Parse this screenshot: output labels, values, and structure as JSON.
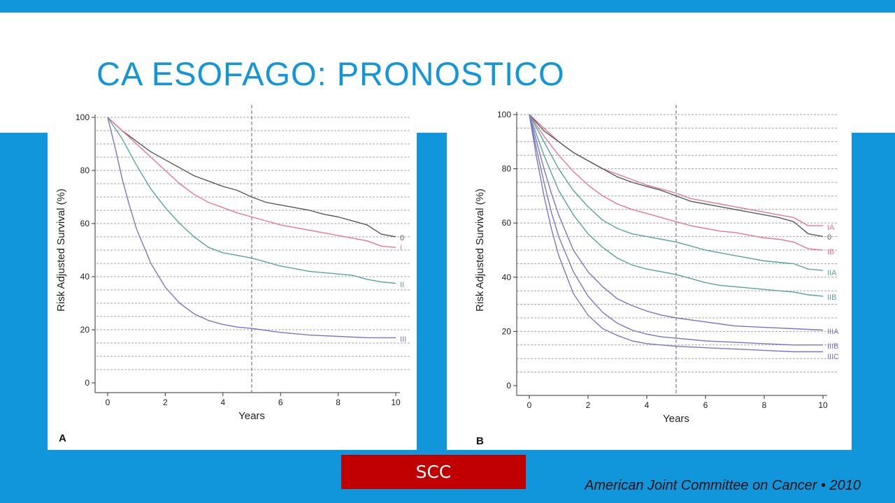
{
  "title": "CA ESOFAGO: PRONOSTICO",
  "badge": "SCC",
  "source": "American Joint Committee on Cancer • 2010",
  "colors": {
    "accent": "#1296db",
    "title": "#1296db",
    "badge_bg": "#c00000"
  },
  "chart_data": [
    {
      "type": "line",
      "panel_label": "A",
      "xlabel": "Years",
      "ylabel": "Risk Adjusted Survival (%)",
      "xlim": [
        0,
        10
      ],
      "ylim": [
        0,
        100
      ],
      "xticks": [
        0,
        2,
        4,
        6,
        8,
        10
      ],
      "yticks": [
        0,
        20,
        40,
        60,
        80,
        100
      ],
      "vline_x": 5,
      "grid": "horizontal dashed",
      "series": [
        {
          "name": "0",
          "color": "#595959",
          "x": [
            0,
            0.5,
            1,
            1.5,
            2,
            2.5,
            3,
            3.5,
            4,
            4.5,
            5,
            5.5,
            6,
            6.5,
            7,
            7.5,
            8,
            8.5,
            9,
            9.5,
            10
          ],
          "y": [
            100,
            95,
            91,
            87,
            84,
            81,
            78,
            76,
            74,
            72.5,
            70,
            68,
            67,
            66,
            65,
            63.5,
            62.5,
            61,
            59.5,
            56,
            55
          ]
        },
        {
          "name": "I",
          "color": "#e8769a",
          "x": [
            0,
            0.5,
            1,
            1.5,
            2,
            2.5,
            3,
            3.5,
            4,
            4.5,
            5,
            5.5,
            6,
            6.5,
            7,
            7.5,
            8,
            8.5,
            9,
            9.5,
            10
          ],
          "y": [
            100,
            95,
            90,
            85,
            80,
            75,
            71,
            68,
            66,
            64,
            62.5,
            61,
            59.5,
            58.5,
            57.5,
            56.5,
            55.5,
            54.5,
            53.5,
            51.5,
            51
          ]
        },
        {
          "name": "II",
          "color": "#5aa39d",
          "x": [
            0,
            0.5,
            1,
            1.5,
            2,
            2.5,
            3,
            3.5,
            4,
            4.5,
            5,
            5.5,
            6,
            6.5,
            7,
            7.5,
            8,
            8.5,
            9,
            9.5,
            10
          ],
          "y": [
            100,
            92,
            82,
            73,
            66,
            60,
            55,
            51,
            49,
            48,
            47,
            45.5,
            44,
            43,
            42,
            41.5,
            41,
            40.5,
            39,
            38,
            37.5
          ]
        },
        {
          "name": "III",
          "color": "#7b76c4",
          "x": [
            0,
            0.25,
            0.5,
            0.75,
            1,
            1.5,
            2,
            2.5,
            3,
            3.5,
            4,
            4.5,
            5,
            6,
            7,
            8,
            9,
            10
          ],
          "y": [
            100,
            89,
            77,
            67,
            58,
            45,
            36,
            30,
            26,
            23.5,
            22,
            21,
            20.5,
            19,
            18,
            17.5,
            17,
            17
          ]
        }
      ]
    },
    {
      "type": "line",
      "panel_label": "B",
      "xlabel": "Years",
      "ylabel": "Risk Adjusted Survival (%)",
      "xlim": [
        0,
        10
      ],
      "ylim": [
        0,
        100
      ],
      "xticks": [
        0,
        2,
        4,
        6,
        8,
        10
      ],
      "yticks": [
        0,
        20,
        40,
        60,
        80,
        100
      ],
      "vline_x": 5,
      "grid": "horizontal dashed",
      "series": [
        {
          "name": "IA",
          "color": "#e8769a",
          "x": [
            0,
            0.5,
            1,
            1.5,
            2,
            2.5,
            3,
            3.5,
            4,
            4.5,
            5,
            5.5,
            6,
            6.5,
            7,
            7.5,
            8,
            8.5,
            9,
            9.5,
            10
          ],
          "y": [
            100,
            95,
            90,
            86,
            83,
            80,
            78,
            76,
            74,
            72.5,
            71,
            69,
            68,
            67,
            66,
            65,
            64,
            63,
            62,
            59,
            59
          ]
        },
        {
          "name": "0",
          "color": "#595959",
          "x": [
            0,
            0.5,
            1,
            1.5,
            2,
            2.5,
            3,
            3.5,
            4,
            4.5,
            5,
            5.5,
            6,
            6.5,
            7,
            7.5,
            8,
            8.5,
            9,
            9.5,
            10
          ],
          "y": [
            100,
            94,
            90,
            86,
            83,
            80,
            77,
            75,
            73.5,
            72,
            70,
            68,
            67,
            66,
            65,
            64,
            63,
            62,
            60.5,
            56,
            55
          ]
        },
        {
          "name": "IB",
          "color": "#e8769a",
          "x": [
            0,
            0.5,
            1,
            1.5,
            2,
            2.5,
            3,
            3.5,
            4,
            4.5,
            5,
            5.5,
            6,
            6.5,
            7,
            7.5,
            8,
            8.5,
            9,
            9.5,
            10
          ],
          "y": [
            100,
            92,
            85,
            79,
            74,
            70,
            67,
            65,
            63.5,
            62,
            60.5,
            59,
            58,
            57,
            56.5,
            55.5,
            54.5,
            54,
            53,
            50.5,
            50
          ]
        },
        {
          "name": "IIA",
          "color": "#5aa39d",
          "x": [
            0,
            0.5,
            1,
            1.5,
            2,
            2.5,
            3,
            3.5,
            4,
            4.5,
            5,
            5.5,
            6,
            6.5,
            7,
            7.5,
            8,
            8.5,
            9,
            9.5,
            10
          ],
          "y": [
            100,
            90,
            80,
            72,
            66,
            61,
            58,
            56,
            55,
            54,
            53,
            51.5,
            50,
            49,
            48,
            47,
            46,
            45.5,
            45,
            43,
            42.5
          ]
        },
        {
          "name": "IIB",
          "color": "#5aa39d",
          "x": [
            0,
            0.5,
            1,
            1.5,
            2,
            2.5,
            3,
            3.5,
            4,
            4.5,
            5,
            5.5,
            6,
            6.5,
            7,
            7.5,
            8,
            8.5,
            9,
            9.5,
            10
          ],
          "y": [
            100,
            85,
            72,
            63,
            56,
            51,
            47,
            44.5,
            43,
            42,
            41,
            39.5,
            38,
            37,
            36.5,
            36,
            35.5,
            35,
            34.5,
            33.5,
            33
          ]
        },
        {
          "name": "IIIA",
          "color": "#7b76c4",
          "x": [
            0,
            0.25,
            0.5,
            0.75,
            1,
            1.5,
            2,
            2.5,
            3,
            3.5,
            4,
            4.5,
            5,
            6,
            7,
            8,
            9,
            10
          ],
          "y": [
            100,
            90,
            80,
            71,
            63,
            50,
            42,
            36.5,
            32,
            29.5,
            27.5,
            26,
            25,
            23.5,
            22,
            21.5,
            21,
            20.5
          ]
        },
        {
          "name": "IIIB",
          "color": "#7b76c4",
          "x": [
            0,
            0.25,
            0.5,
            0.75,
            1,
            1.5,
            2,
            2.5,
            3,
            3.5,
            4,
            4.5,
            5,
            6,
            7,
            8,
            9,
            10
          ],
          "y": [
            100,
            87,
            75,
            64,
            55,
            42,
            33,
            27,
            23,
            20.5,
            19,
            18,
            17.5,
            16.5,
            16,
            15.5,
            15,
            15
          ]
        },
        {
          "name": "IIIC",
          "color": "#7b76c4",
          "x": [
            0,
            0.25,
            0.5,
            0.75,
            1,
            1.5,
            2,
            2.5,
            3,
            3.5,
            4,
            4.5,
            5,
            6,
            7,
            8,
            9,
            10
          ],
          "y": [
            100,
            84,
            70,
            58,
            48,
            34,
            26,
            21,
            18.5,
            16.5,
            15.5,
            15,
            14.5,
            14,
            13.5,
            13,
            12.5,
            12.5
          ]
        }
      ]
    }
  ]
}
